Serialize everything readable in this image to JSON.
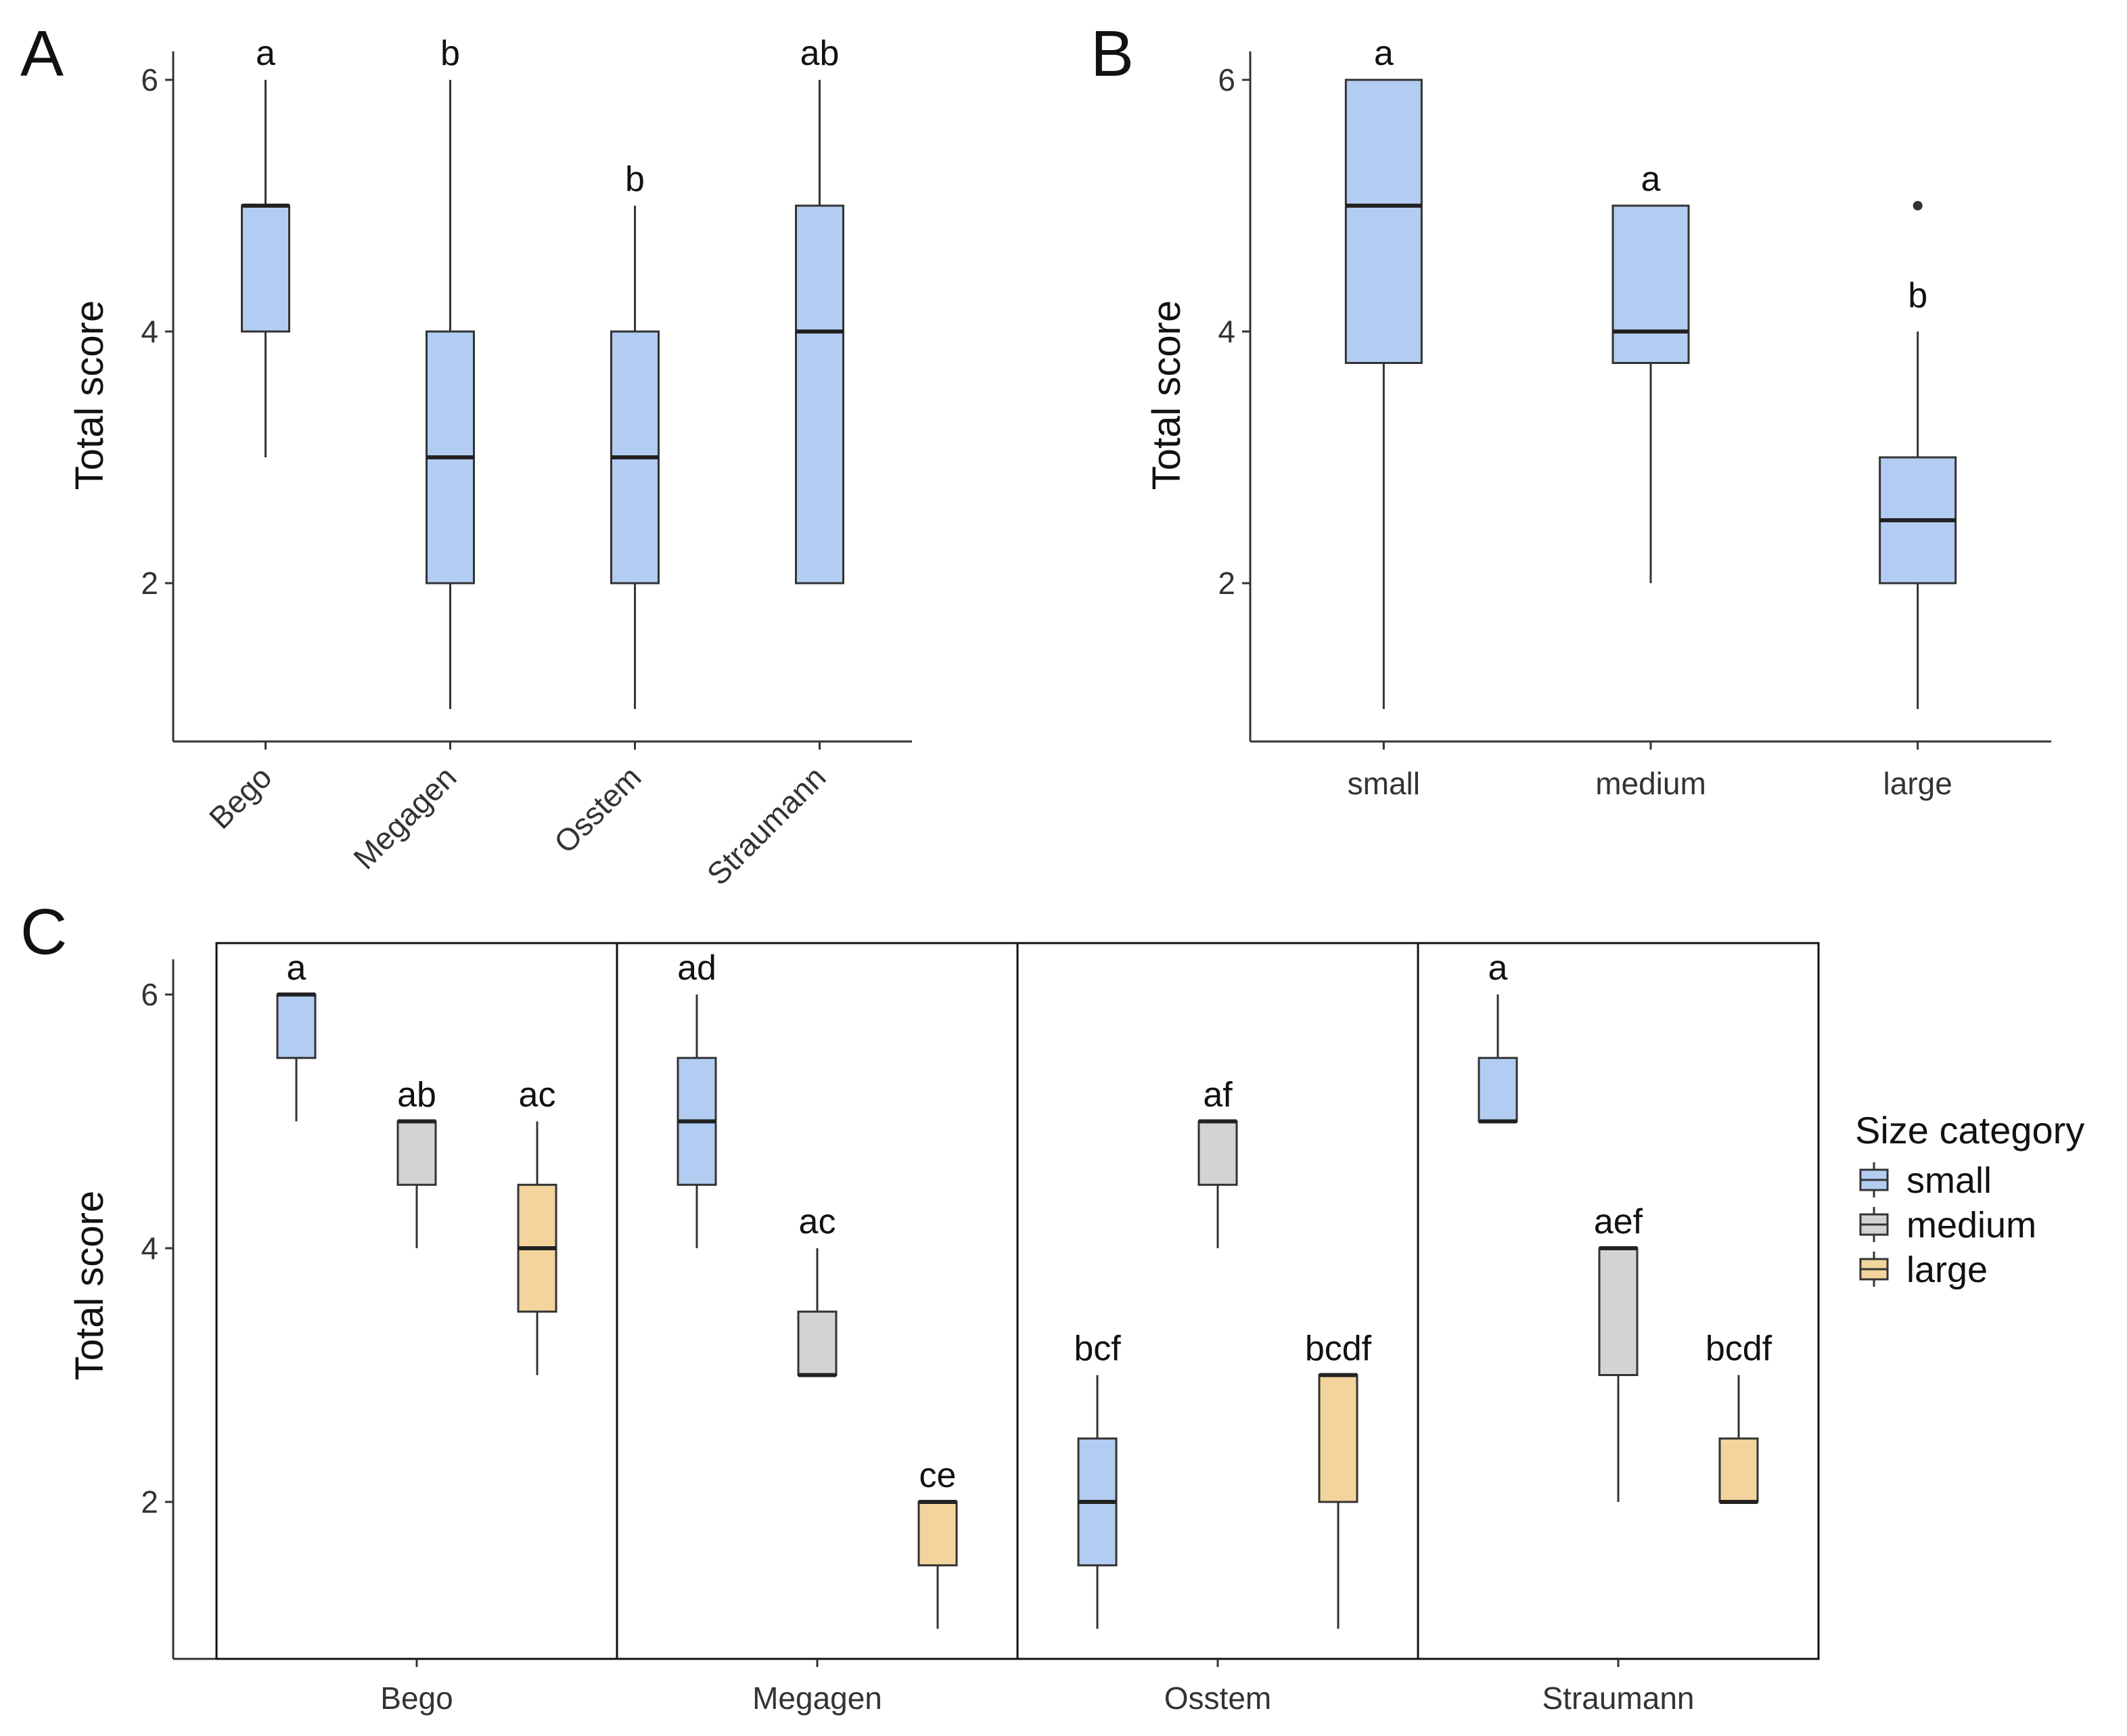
{
  "chart_data": [
    {
      "panel": "A",
      "type": "boxplot",
      "xlabel": "",
      "ylabel": "Total score",
      "ylim": [
        0.75,
        6.2
      ],
      "yticks": [
        2,
        4,
        6
      ],
      "categories": [
        "Bego",
        "Megagen",
        "Osstem",
        "Straumann"
      ],
      "fill_color": "#b3cdf2",
      "boxes": [
        {
          "category": "Bego",
          "min": 3,
          "q1": 4,
          "median": 5,
          "q3": 5,
          "max": 6,
          "letters": "a"
        },
        {
          "category": "Megagen",
          "min": 1,
          "q1": 2,
          "median": 3,
          "q3": 4,
          "max": 6,
          "letters": "b"
        },
        {
          "category": "Osstem",
          "min": 1,
          "q1": 2,
          "median": 3,
          "q3": 4,
          "max": 5,
          "letters": "b"
        },
        {
          "category": "Straumann",
          "min": 2,
          "q1": 2,
          "median": 4,
          "q3": 5,
          "max": 6,
          "letters": "ab"
        }
      ]
    },
    {
      "panel": "B",
      "type": "boxplot",
      "xlabel": "",
      "ylabel": "Total score",
      "ylim": [
        0.75,
        6.2
      ],
      "yticks": [
        2,
        4,
        6
      ],
      "categories": [
        "small",
        "medium",
        "large"
      ],
      "fill_color": "#b3cdf2",
      "boxes": [
        {
          "category": "small",
          "min": 1,
          "q1": 3.75,
          "median": 5,
          "q3": 6,
          "max": 6,
          "letters": "a",
          "outliers": []
        },
        {
          "category": "medium",
          "min": 2,
          "q1": 3.75,
          "median": 4,
          "q3": 5,
          "max": 5,
          "letters": "a",
          "outliers": []
        },
        {
          "category": "large",
          "min": 1,
          "q1": 2,
          "median": 2.5,
          "q3": 3,
          "max": 4,
          "letters": "b",
          "outliers": [
            5
          ]
        }
      ]
    },
    {
      "panel": "C",
      "type": "boxplot",
      "xlabel": "",
      "ylabel": "Total score",
      "ylim": [
        0.75,
        6.25
      ],
      "yticks": [
        2,
        4,
        6
      ],
      "facets": [
        "Bego",
        "Megagen",
        "Osstem",
        "Straumann"
      ],
      "series": [
        {
          "name": "small",
          "color": "#b3cdf2"
        },
        {
          "name": "medium",
          "color": "#d3d3d3"
        },
        {
          "name": "large",
          "color": "#f2d49c"
        }
      ],
      "legend_title": "Size category",
      "legend_position": "right",
      "boxes": [
        {
          "facet": "Bego",
          "series": "small",
          "min": 5,
          "q1": 5.5,
          "median": 6,
          "q3": 6,
          "max": 6,
          "letters": "a"
        },
        {
          "facet": "Bego",
          "series": "medium",
          "min": 4,
          "q1": 4.5,
          "median": 5,
          "q3": 5,
          "max": 5,
          "letters": "ab"
        },
        {
          "facet": "Bego",
          "series": "large",
          "min": 3,
          "q1": 3.5,
          "median": 4,
          "q3": 4.5,
          "max": 5,
          "letters": "ac"
        },
        {
          "facet": "Megagen",
          "series": "small",
          "min": 4,
          "q1": 4.5,
          "median": 5,
          "q3": 5.5,
          "max": 6,
          "letters": "ad"
        },
        {
          "facet": "Megagen",
          "series": "medium",
          "min": 3,
          "q1": 3,
          "median": 3,
          "q3": 3.5,
          "max": 4,
          "letters": "ac"
        },
        {
          "facet": "Megagen",
          "series": "large",
          "min": 1,
          "q1": 1.5,
          "median": 2,
          "q3": 2,
          "max": 2,
          "letters": "ce"
        },
        {
          "facet": "Osstem",
          "series": "small",
          "min": 1,
          "q1": 1.5,
          "median": 2,
          "q3": 2.5,
          "max": 3,
          "letters": "bcf"
        },
        {
          "facet": "Osstem",
          "series": "medium",
          "min": 4,
          "q1": 4.5,
          "median": 5,
          "q3": 5,
          "max": 5,
          "letters": "af"
        },
        {
          "facet": "Osstem",
          "series": "large",
          "min": 1,
          "q1": 2,
          "median": 3,
          "q3": 3,
          "max": 3,
          "letters": "bcdf"
        },
        {
          "facet": "Straumann",
          "series": "small",
          "min": 5,
          "q1": 5,
          "median": 5,
          "q3": 5.5,
          "max": 6,
          "letters": "a"
        },
        {
          "facet": "Straumann",
          "series": "medium",
          "min": 2,
          "q1": 3,
          "median": 4,
          "q3": 4,
          "max": 4,
          "letters": "aef"
        },
        {
          "facet": "Straumann",
          "series": "large",
          "min": 2,
          "q1": 2,
          "median": 2,
          "q3": 2.5,
          "max": 3,
          "letters": "bcdf"
        }
      ]
    }
  ]
}
